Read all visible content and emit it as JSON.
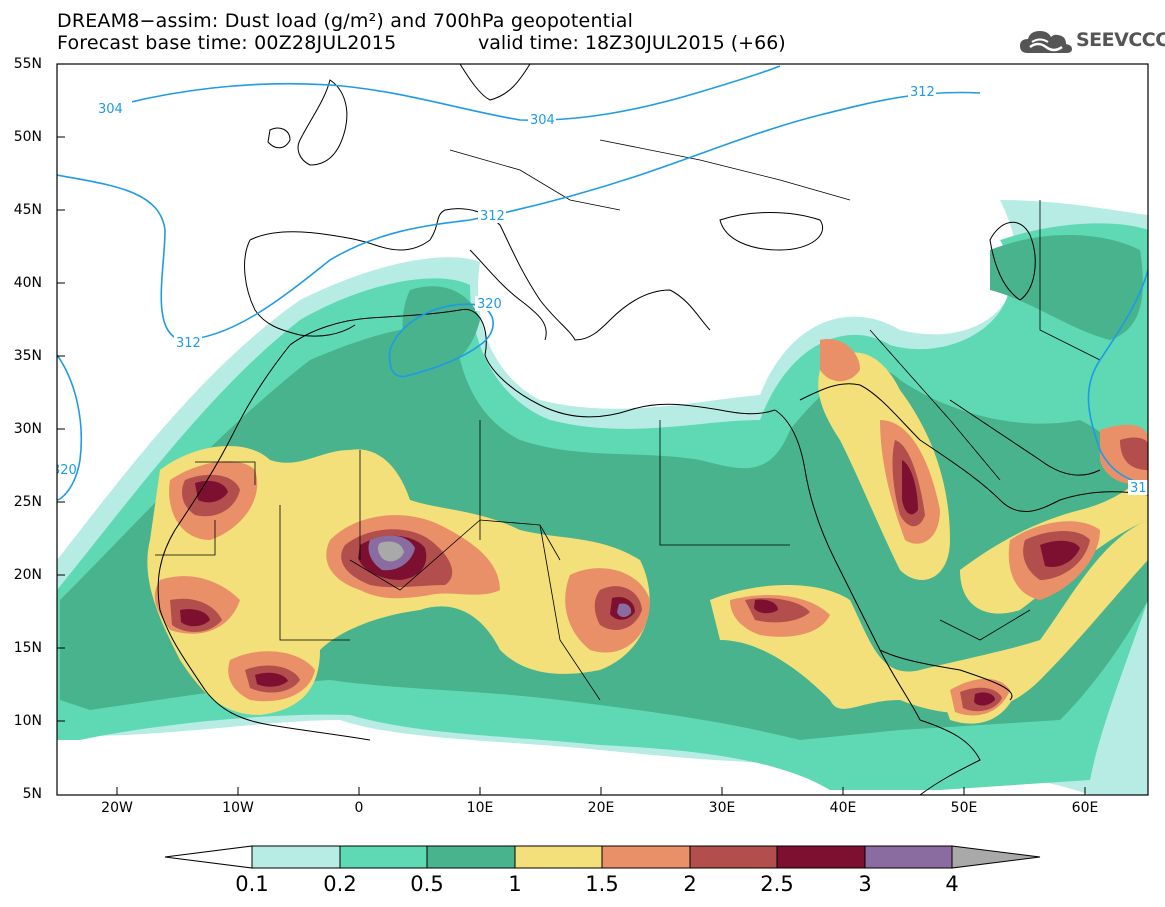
{
  "title": {
    "line1": "DREAM8−assim: Dust load (g/m²) and 700hPa geopotential",
    "line2": "Forecast base time: 00Z28JUL2015",
    "line2b": "valid time: 18Z30JUL2015 (+66)"
  },
  "logo": {
    "text": "SEEVCCC",
    "icon": "cloud-icon"
  },
  "latitude_labels": [
    "55N",
    "50N",
    "45N",
    "40N",
    "35N",
    "30N",
    "25N",
    "20N",
    "15N",
    "10N",
    "5N"
  ],
  "longitude_labels": [
    "20W",
    "10W",
    "0",
    "10E",
    "20E",
    "30E",
    "40E",
    "50E",
    "60E"
  ],
  "contour_labels": [
    "304",
    "304",
    "312",
    "312",
    "312",
    "320",
    "320",
    "31"
  ],
  "colorbar": {
    "labels": [
      "0.1",
      "0.2",
      "0.5",
      "1",
      "1.5",
      "2",
      "2.5",
      "3",
      "4"
    ],
    "colors": [
      "#b6ece4",
      "#5ed9b4",
      "#48b38c",
      "#f3e07a",
      "#ea9068",
      "#b24f4d",
      "#7d1030",
      "#8b6ca0",
      "#a9a9a9"
    ]
  },
  "colors": {
    "contour": "#1e9be6",
    "coast": "#000000"
  }
}
